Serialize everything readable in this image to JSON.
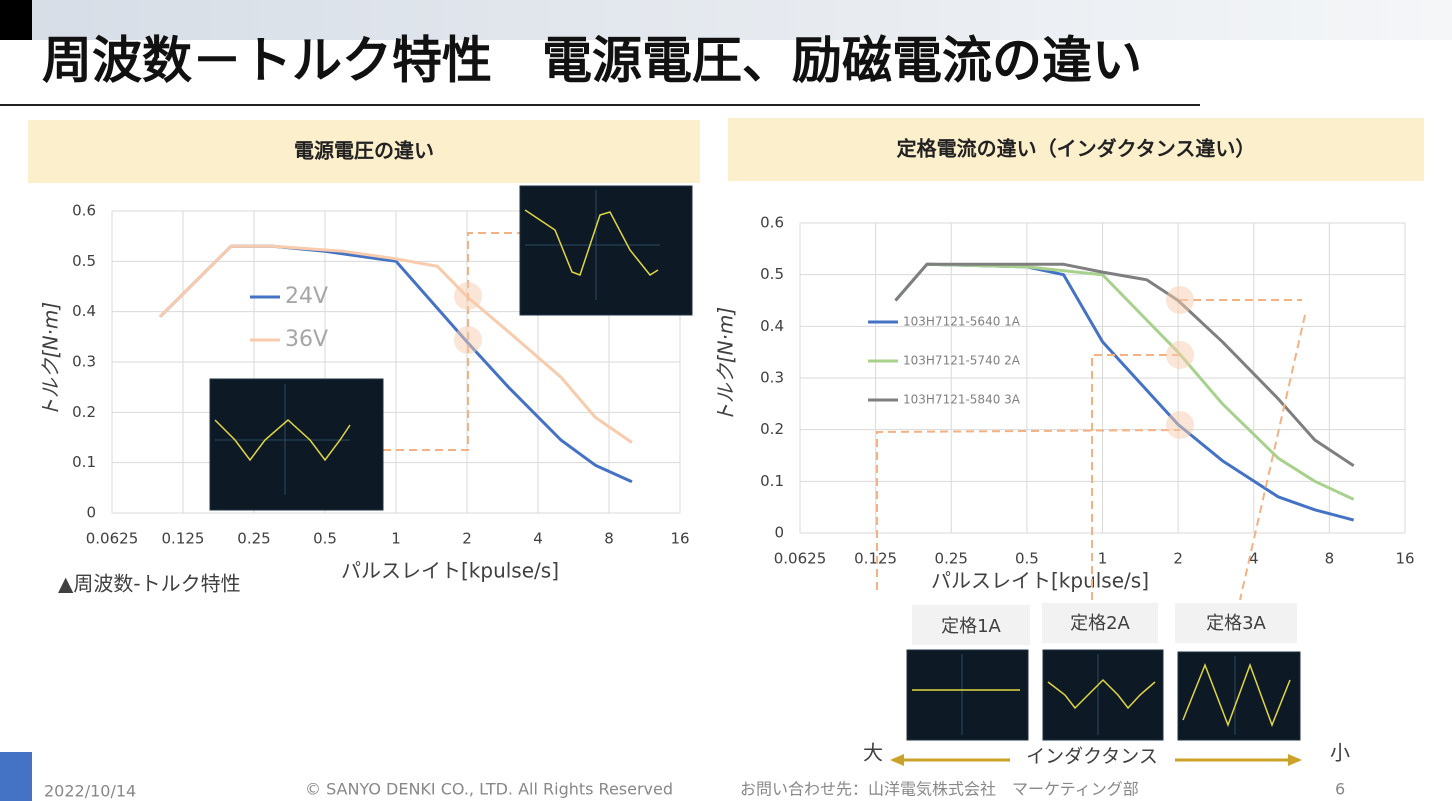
{
  "slide": {
    "title": "周波数－トルク特性　電源電圧、励磁電流の違い",
    "date": "2022/10/14",
    "copyright": "© SANYO DENKI CO., LTD. All Rights Reserved",
    "contact": "お問い合わせ先：山洋電気株式会社　マーケティング部",
    "page": "6",
    "rated_labels": [
      "定格1A",
      "定格2A",
      "定格3A"
    ],
    "inductance_large": "大",
    "inductance_label": "インダクタンス",
    "inductance_small": "小"
  },
  "chart_data": [
    {
      "type": "line",
      "title": "電源電圧の違い",
      "caption": "▲周波数-トルク特性",
      "x_label": "パルスレイト[kpulse/s]",
      "y_label": "トルク[N·m]",
      "xscale": "log",
      "grid": true,
      "xlim": [
        0.0625,
        16
      ],
      "xticks": [
        0.0625,
        0.125,
        0.25,
        0.5,
        1,
        2,
        4,
        8,
        16
      ],
      "ylim": [
        0,
        0.6
      ],
      "yticks": [
        0,
        0.1,
        0.2,
        0.3,
        0.4,
        0.5,
        0.6
      ],
      "legend": "inside-left",
      "series": [
        {
          "name": "24V",
          "color": "#4472c4",
          "x": [
            0.1,
            0.2,
            0.3,
            0.5,
            1,
            2,
            3,
            5,
            7,
            10
          ],
          "values": [
            0.39,
            0.53,
            0.53,
            0.52,
            0.5,
            0.34,
            0.25,
            0.145,
            0.095,
            0.062
          ]
        },
        {
          "name": "36V",
          "color": "#f8cbad",
          "x": [
            0.1,
            0.2,
            0.3,
            0.6,
            1,
            1.5,
            2,
            3,
            5,
            7,
            10
          ],
          "values": [
            0.39,
            0.53,
            0.53,
            0.52,
            0.505,
            0.49,
            0.43,
            0.36,
            0.27,
            0.19,
            0.14
          ]
        }
      ]
    },
    {
      "type": "line",
      "title": "定格電流の違い（インダクタンス違い）",
      "x_label": "パルスレイト[kpulse/s]",
      "y_label": "トルク[N·m]",
      "xscale": "log",
      "grid": true,
      "xlim": [
        0.0625,
        16
      ],
      "xticks": [
        0.0625,
        0.125,
        0.25,
        0.5,
        1,
        2,
        4,
        8,
        16
      ],
      "ylim": [
        0,
        0.6
      ],
      "yticks": [
        0,
        0.1,
        0.2,
        0.3,
        0.4,
        0.5,
        0.6
      ],
      "legend": "inside-left",
      "series": [
        {
          "name": "103H7121-5640 1A",
          "color": "#4472c4",
          "x": [
            0.15,
            0.2,
            0.5,
            0.7,
            1,
            2,
            3,
            5,
            7,
            10
          ],
          "values": [
            0.45,
            0.52,
            0.515,
            0.5,
            0.37,
            0.21,
            0.14,
            0.07,
            0.045,
            0.025
          ]
        },
        {
          "name": "103H7121-5740 2A",
          "color": "#a9d18e",
          "x": [
            0.15,
            0.2,
            0.5,
            1,
            2,
            3,
            5,
            7,
            10
          ],
          "values": [
            0.45,
            0.52,
            0.515,
            0.5,
            0.35,
            0.25,
            0.145,
            0.1,
            0.065
          ]
        },
        {
          "name": "103H7121-5840 3A",
          "color": "#7f7f7f",
          "x": [
            0.15,
            0.2,
            0.7,
            1,
            1.5,
            2,
            3,
            5,
            7,
            10
          ],
          "values": [
            0.45,
            0.52,
            0.52,
            0.505,
            0.49,
            0.45,
            0.37,
            0.26,
            0.18,
            0.13
          ]
        }
      ]
    }
  ]
}
